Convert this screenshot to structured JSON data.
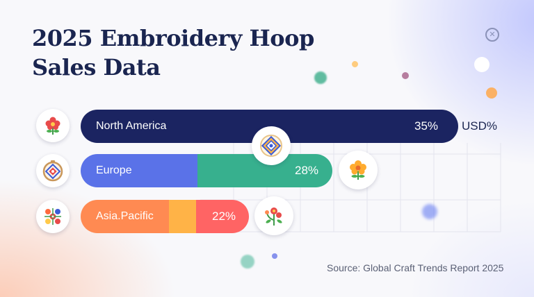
{
  "title_line1": "2025 Embroidery Hoop",
  "title_line2": "Sales Data",
  "unit_label": "USD%",
  "source": "Source: Global Craft Trends Report 2025",
  "colors": {
    "north_america": "#1b2461",
    "europe_a": "#5a72e8",
    "europe_b": "#37b08e",
    "asia_a": "#ff8a52",
    "asia_b": "#ffb347",
    "asia_c": "#ff6464",
    "title": "#1a2550"
  },
  "icons": [
    "flower-red-icon",
    "hoop-pattern-icon",
    "flower-orange-icon",
    "embroidery-badge-icon",
    "floral-pattern-icon",
    "flower-sprig-icon",
    "close-circle-icon"
  ],
  "chart_data": {
    "type": "bar",
    "orientation": "horizontal",
    "categories": [
      "North America",
      "Europe",
      "Asia.Pacific"
    ],
    "values": [
      35,
      28,
      22
    ],
    "value_labels": [
      "35%",
      "28%",
      "22%"
    ],
    "title": "2025 Embroidery Hoop Sales Data",
    "xlabel": "USD%",
    "ylabel": "",
    "grid": true
  }
}
